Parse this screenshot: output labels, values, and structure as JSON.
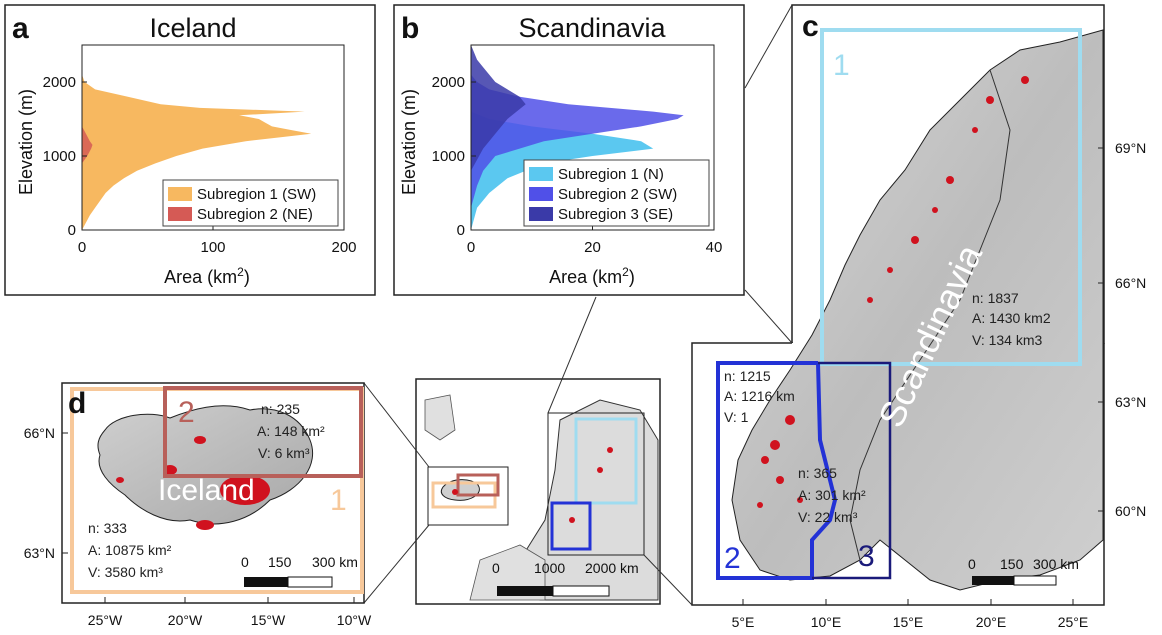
{
  "chart_data": [
    {
      "type": "area",
      "panel": "a",
      "title": "Iceland",
      "xlabel": "Area (km²)",
      "ylabel": "Elevation (m)",
      "xlim": [
        0,
        200
      ],
      "ylim": [
        0,
        2500
      ],
      "x_ticks": [
        "0",
        "100",
        "200"
      ],
      "y_ticks": [
        "0",
        "1000",
        "2000"
      ],
      "series": [
        {
          "name": "Subregion 1 (SW)",
          "color": "#f7b860",
          "elevation": [
            0,
            100,
            200,
            300,
            400,
            500,
            600,
            700,
            800,
            900,
            1000,
            1100,
            1200,
            1250,
            1300,
            1350,
            1400,
            1450,
            1500,
            1550,
            1600,
            1650,
            1700,
            1800,
            1900,
            2000,
            2100
          ],
          "area": [
            0,
            3,
            6,
            10,
            14,
            18,
            24,
            32,
            42,
            56,
            72,
            92,
            125,
            150,
            175,
            160,
            145,
            140,
            135,
            120,
            170,
            90,
            60,
            35,
            10,
            2,
            0
          ]
        },
        {
          "name": "Subregion 2 (NE)",
          "color": "#d55a55",
          "elevation": [
            900,
            1000,
            1100,
            1150,
            1200,
            1300,
            1400
          ],
          "area": [
            0,
            4,
            7,
            8,
            6,
            3,
            0
          ]
        }
      ]
    },
    {
      "type": "area",
      "panel": "b",
      "title": "Scandinavia",
      "xlabel": "Area (km²)",
      "ylabel": "Elevation (m)",
      "xlim": [
        0,
        40
      ],
      "ylim": [
        0,
        2500
      ],
      "x_ticks": [
        "0",
        "20",
        "40"
      ],
      "y_ticks": [
        "0",
        "1000",
        "2000"
      ],
      "series": [
        {
          "name": "Subregion 1 (N)",
          "color": "#5bc8f0",
          "elevation": [
            0,
            300,
            500,
            700,
            900,
            1000,
            1100,
            1200,
            1300,
            1400,
            1500,
            1600
          ],
          "area": [
            0,
            1,
            3,
            6,
            12,
            20,
            30,
            28,
            20,
            10,
            3,
            0
          ]
        },
        {
          "name": "Subregion 2 (SW)",
          "color": "#5050e8",
          "elevation": [
            300,
            600,
            800,
            1000,
            1100,
            1200,
            1300,
            1400,
            1500,
            1550,
            1600,
            1700,
            1800,
            1900,
            2000,
            2100
          ],
          "area": [
            0,
            1,
            2,
            4,
            8,
            12,
            20,
            28,
            34,
            35,
            30,
            16,
            8,
            3,
            1,
            0
          ]
        },
        {
          "name": "Subregion 3 (SE)",
          "color": "#3a3aa8",
          "elevation": [
            800,
            1100,
            1300,
            1500,
            1700,
            1800,
            1900,
            2000,
            2100,
            2200,
            2300,
            2400,
            2500
          ],
          "area": [
            0,
            2,
            4,
            6,
            9,
            8,
            6,
            4,
            3,
            2,
            1,
            0.5,
            0
          ]
        }
      ]
    }
  ],
  "panels": {
    "c_letter": "c",
    "d_letter": "d",
    "c_region_label": "Scandinavia",
    "d_region_label": "Iceland"
  },
  "map_c": {
    "lat_ticks": [
      "69°N",
      "66°N",
      "63°N",
      "60°N"
    ],
    "lon_ticks": [
      "5°E",
      "10°E",
      "15°E",
      "20°E",
      "25°E"
    ],
    "box_colors": {
      "sub1": "#9fdcf0",
      "sub2": "#2332d6",
      "sub3": "#1a1a7a"
    },
    "box_labels": {
      "sub1": "1",
      "sub2": "2",
      "sub3": "3"
    },
    "stats": {
      "sub1": {
        "n": "n: 1837",
        "a": "A: 1430 km2",
        "v": "V: 134  km3"
      },
      "sub2": {
        "n": "n: 1215",
        "a": "A: 1216 km",
        "v": "V: 1"
      },
      "sub3": {
        "n": "n: 365",
        "a": "A: 301 km²",
        "v": "V: 22  km³"
      }
    },
    "scalebar": [
      "0",
      "150",
      "300 km"
    ]
  },
  "map_d": {
    "lat_ticks": [
      "66°N",
      "63°N"
    ],
    "lon_ticks": [
      "25°W",
      "20°W",
      "15°W",
      "10°W"
    ],
    "box_colors": {
      "sub1": "#f7c89a",
      "sub2": "#b8605a"
    },
    "box_labels": {
      "sub1": "1",
      "sub2": "2"
    },
    "stats": {
      "sub1": {
        "n": "n: 333",
        "a": "A: 10875 km²",
        "v": "V: 3580  km³"
      },
      "sub2": {
        "n": "n: 235",
        "a": "A: 148 km²",
        "v": "V: 6 km³"
      }
    },
    "scalebar": [
      "0",
      "150",
      "300 km"
    ]
  },
  "overview": {
    "scalebar": [
      "0",
      "1000",
      "2000 km"
    ]
  }
}
